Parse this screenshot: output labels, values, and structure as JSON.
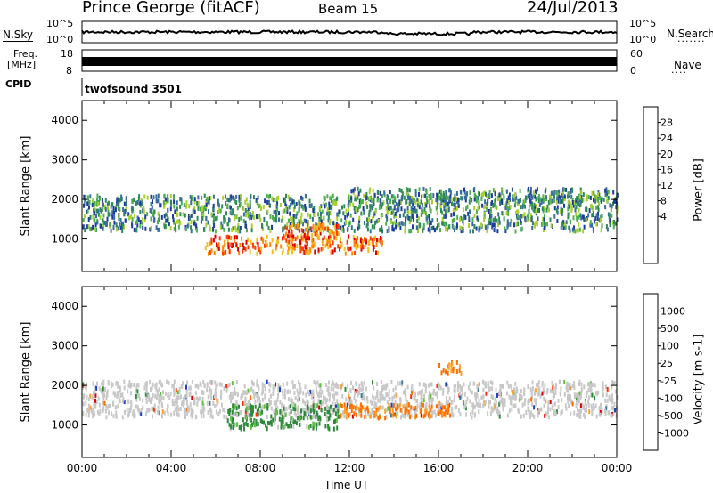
{
  "header": {
    "station": "Prince George (fitACF)",
    "beam": "Beam 15",
    "date": "24/Jul/2013"
  },
  "strips": {
    "nsky_label": "N.Sky",
    "nsky_ticks": [
      "10^5",
      "10^0"
    ],
    "nsearch_label": "N.Search",
    "nsearch_ticks": [
      "10^5",
      "10^0"
    ],
    "freq_label": "Freq.",
    "freq_unit": "[MHz]",
    "freq_ticks": [
      "18",
      "8"
    ],
    "nave_label": "Nave",
    "nave_ticks": [
      "60",
      "0"
    ],
    "cpid_label": "CPID",
    "cpid_value": "twofsound 3501"
  },
  "chart_data": [
    {
      "type": "heatmap",
      "panel": "power",
      "xlabel": "",
      "ylabel": "Slant Range [km]",
      "xlim": [
        0,
        24
      ],
      "ylim": [
        180,
        4500
      ],
      "yticks": [
        1000,
        2000,
        3000,
        4000
      ],
      "colorbar": {
        "label": "Power [dB]",
        "ticks": [
          "28",
          "24",
          "20",
          "16",
          "12",
          "8",
          "4"
        ],
        "colors": [
          "#0000ff",
          "#1e3ca0",
          "#3a6e9e",
          "#2f8a5a",
          "#50b050",
          "#a8d030",
          "#f0c020",
          "#ff8a00",
          "#ff4000",
          "#e00000"
        ]
      },
      "echo_bands": [
        {
          "t0": 0.0,
          "t1": 24.0,
          "range_center": 1700,
          "width": 900,
          "level": "mid"
        },
        {
          "t0": 5.5,
          "t1": 13.5,
          "range_center": 900,
          "width": 450,
          "level": "high"
        },
        {
          "t0": 9.0,
          "t1": 11.5,
          "range_center": 1250,
          "width": 400,
          "level": "high"
        },
        {
          "t0": 12.0,
          "t1": 24.0,
          "range_center": 2150,
          "width": 350,
          "level": "mid"
        }
      ]
    },
    {
      "type": "heatmap",
      "panel": "velocity",
      "xlabel": "Time UT",
      "ylabel": "Slant Range [km]",
      "xlim": [
        0,
        24
      ],
      "ylim": [
        180,
        4500
      ],
      "yticks": [
        1000,
        2000,
        3000,
        4000
      ],
      "xticks": [
        "00:00",
        "04:00",
        "08:00",
        "12:00",
        "16:00",
        "20:00",
        "00:00"
      ],
      "colorbar": {
        "label": "Velocity [m s-1]",
        "ticks": [
          "1000",
          "500",
          "100",
          "25",
          "-25",
          "-100",
          "-500",
          "-1000"
        ],
        "colors": [
          "#1840c0",
          "#3a7a9a",
          "#2e8a3a",
          "#60c040",
          "#c8c8c8",
          "#ffa030",
          "#ff7000",
          "#ff3000",
          "#e00000"
        ]
      },
      "echo_bands": [
        {
          "t0": 0.0,
          "t1": 24.0,
          "range_center": 1700,
          "width": 900,
          "level": "gray"
        },
        {
          "t0": 6.5,
          "t1": 11.5,
          "range_center": 1250,
          "width": 600,
          "level": "green"
        },
        {
          "t0": 11.5,
          "t1": 16.5,
          "range_center": 1400,
          "width": 350,
          "level": "orange"
        },
        {
          "t0": 16.0,
          "t1": 17.0,
          "range_center": 2500,
          "width": 300,
          "level": "orange"
        }
      ]
    }
  ]
}
